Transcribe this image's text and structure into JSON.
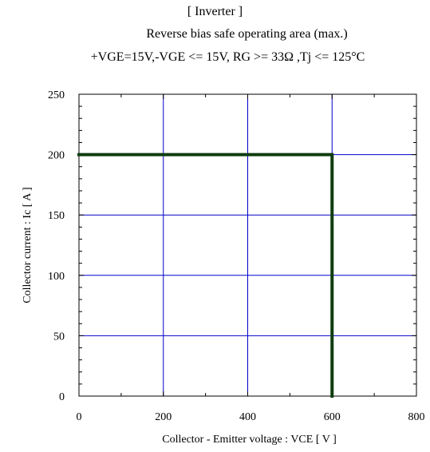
{
  "chart_data": {
    "type": "line",
    "title_lines": [
      "[ Inverter ]",
      "Reverse bias safe operating area (max.)",
      "+VGE=15V,-VGE <= 15V, RG >= 33Ω ,Tj <= 125°C"
    ],
    "xlabel": "Collector - Emitter voltage :  VCE  [ V ]",
    "ylabel": "Collector current : Ic  [ A ]",
    "xlim": [
      0,
      800
    ],
    "ylim": [
      0,
      250
    ],
    "x_ticks": [
      0,
      200,
      400,
      600,
      800
    ],
    "y_ticks": [
      0,
      50,
      100,
      150,
      200,
      250
    ],
    "x_minor_step": 100,
    "y_minor_step": 10,
    "grid": true,
    "grid_color": "#0000cc",
    "series": [
      {
        "color": "#0f3d0f",
        "points": [
          [
            0,
            200
          ],
          [
            600,
            200
          ],
          [
            600,
            0
          ]
        ]
      }
    ]
  }
}
